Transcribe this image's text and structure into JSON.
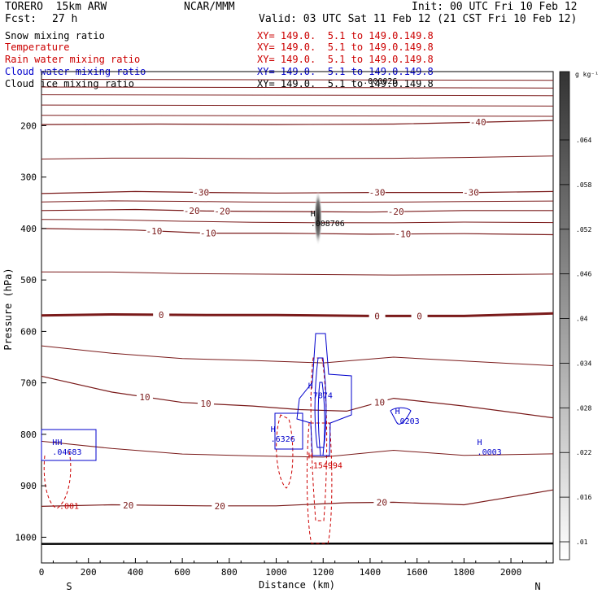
{
  "header": {
    "model": "TORERO  15km ARW",
    "center": "NCAR/MMM",
    "init": "Init: 00 UTC Fri 10 Feb 12",
    "fcst_label": "Fcst:",
    "fcst_value": "27 h",
    "valid": "Valid: 03 UTC Sat 11 Feb 12 (21 CST Fri 10 Feb 12)"
  },
  "fields": [
    {
      "name": "Snow mixing ratio",
      "xsec": "XY= 149.0.  5.1 to 149.0.149.8",
      "name_color": "#000000",
      "xsec_color": "#cc0000"
    },
    {
      "name": "Temperature",
      "xsec": "XY= 149.0.  5.1 to 149.0.149.8",
      "name_color": "#cc0000",
      "xsec_color": "#cc0000"
    },
    {
      "name": "Rain water mixing ratio",
      "xsec": "XY= 149.0.  5.1 to 149.0.149.8",
      "name_color": "#cc0000",
      "xsec_color": "#cc0000"
    },
    {
      "name": "Cloud water mixing ratio",
      "xsec": "XY= 149.0.  5.1 to 149.0.149.8",
      "name_color": "#0000cc",
      "xsec_color": "#0000cc"
    },
    {
      "name": "Cloud ice mixing ratio",
      "xsec": "XY= 149.0.  5.1 to 149.0.149.8",
      "name_color": "#000000",
      "xsec_color": "#000000"
    }
  ],
  "chart_data": {
    "type": "contour",
    "xlabel": "Distance (km)",
    "ylabel": "Pressure (hPa)",
    "xlim": [
      0,
      2180
    ],
    "ylim": [
      1050,
      95
    ],
    "x_ticks": [
      0,
      200,
      400,
      600,
      800,
      1000,
      1200,
      1400,
      1600,
      1800,
      2000
    ],
    "y_ticks": [
      200,
      300,
      400,
      500,
      600,
      700,
      800,
      900,
      1000
    ],
    "x_end_labels": {
      "left": "S",
      "right": "N"
    },
    "colorbar": {
      "unit": "g kg⁻¹",
      "ticks": [
        ".01",
        ".016",
        ".022",
        ".028",
        ".034",
        ".04",
        ".046",
        ".052",
        ".058",
        ".064"
      ]
    },
    "temperature_contours": [
      {
        "value": -40,
        "label": "-40",
        "labels_x": [
          1860
        ],
        "p": [
          [
            0,
            198
          ],
          [
            500,
            197
          ],
          [
            1000,
            198
          ],
          [
            1500,
            197
          ],
          [
            1900,
            193
          ],
          [
            2180,
            190
          ]
        ]
      },
      {
        "value": -30,
        "label": "-30",
        "labels_x": [
          680,
          1430,
          1830
        ],
        "p": [
          [
            0,
            332
          ],
          [
            400,
            328
          ],
          [
            700,
            330
          ],
          [
            1000,
            331
          ],
          [
            1400,
            330
          ],
          [
            1850,
            330
          ],
          [
            2180,
            328
          ]
        ]
      },
      {
        "value": -20,
        "label": "-20",
        "labels_x": [
          640,
          770,
          1510
        ],
        "p": [
          [
            0,
            365
          ],
          [
            400,
            363
          ],
          [
            700,
            366
          ],
          [
            1000,
            367
          ],
          [
            1400,
            368
          ],
          [
            1800,
            365
          ],
          [
            2180,
            365
          ]
        ]
      },
      {
        "value": -10,
        "label": "-10",
        "labels_x": [
          480,
          710,
          1540
        ],
        "p": [
          [
            0,
            400
          ],
          [
            400,
            403
          ],
          [
            700,
            409
          ],
          [
            1000,
            409
          ],
          [
            1400,
            411
          ],
          [
            1800,
            410
          ],
          [
            2180,
            412
          ]
        ]
      },
      {
        "value": 0,
        "label": "0",
        "labels_x": [
          510,
          1430,
          1610
        ],
        "p": [
          [
            0,
            569
          ],
          [
            300,
            567
          ],
          [
            700,
            568
          ],
          [
            1000,
            568
          ],
          [
            1400,
            570
          ],
          [
            1800,
            570
          ],
          [
            2180,
            565
          ]
        ]
      },
      {
        "value": 10,
        "label": "10",
        "labels_x": [
          440,
          700,
          1440
        ],
        "p": [
          [
            0,
            687
          ],
          [
            300,
            718
          ],
          [
            600,
            738
          ],
          [
            900,
            745
          ],
          [
            1100,
            752
          ],
          [
            1300,
            755
          ],
          [
            1500,
            730
          ],
          [
            1800,
            745
          ],
          [
            2180,
            768
          ]
        ]
      },
      {
        "value": 20,
        "label": "20",
        "labels_x": [
          370,
          760,
          1450
        ],
        "p": [
          [
            0,
            940
          ],
          [
            300,
            937
          ],
          [
            700,
            939
          ],
          [
            1000,
            939
          ],
          [
            1300,
            933
          ],
          [
            1500,
            932
          ],
          [
            1800,
            937
          ],
          [
            2180,
            908
          ]
        ]
      }
    ],
    "cloud_water_maxima": [
      {
        "label": "H",
        "value": ".7874",
        "x": 1150,
        "p": 720
      },
      {
        "label": "H",
        "value": ".6326",
        "x": 990,
        "p": 805
      },
      {
        "label": "H",
        "value": ".0203",
        "x": 1520,
        "p": 770
      },
      {
        "label": "H",
        "value": ".0003",
        "x": 1870,
        "p": 830
      },
      {
        "label": "HH",
        "value": ".04683",
        "x": 60,
        "p": 830
      }
    ],
    "rain_water_maxima": [
      {
        "label": "H",
        "value": ".154994",
        "x": 1150,
        "p": 856
      },
      {
        "label": "",
        "value": ".001",
        "x": 90,
        "p": 935
      }
    ],
    "cloud_ice_maximum": {
      "label": "H",
      "value": ".008706",
      "x": 1160,
      "p": 386
    },
    "snow_label": {
      "value": ".000026",
      "x": 1370,
      "p": 112
    }
  }
}
